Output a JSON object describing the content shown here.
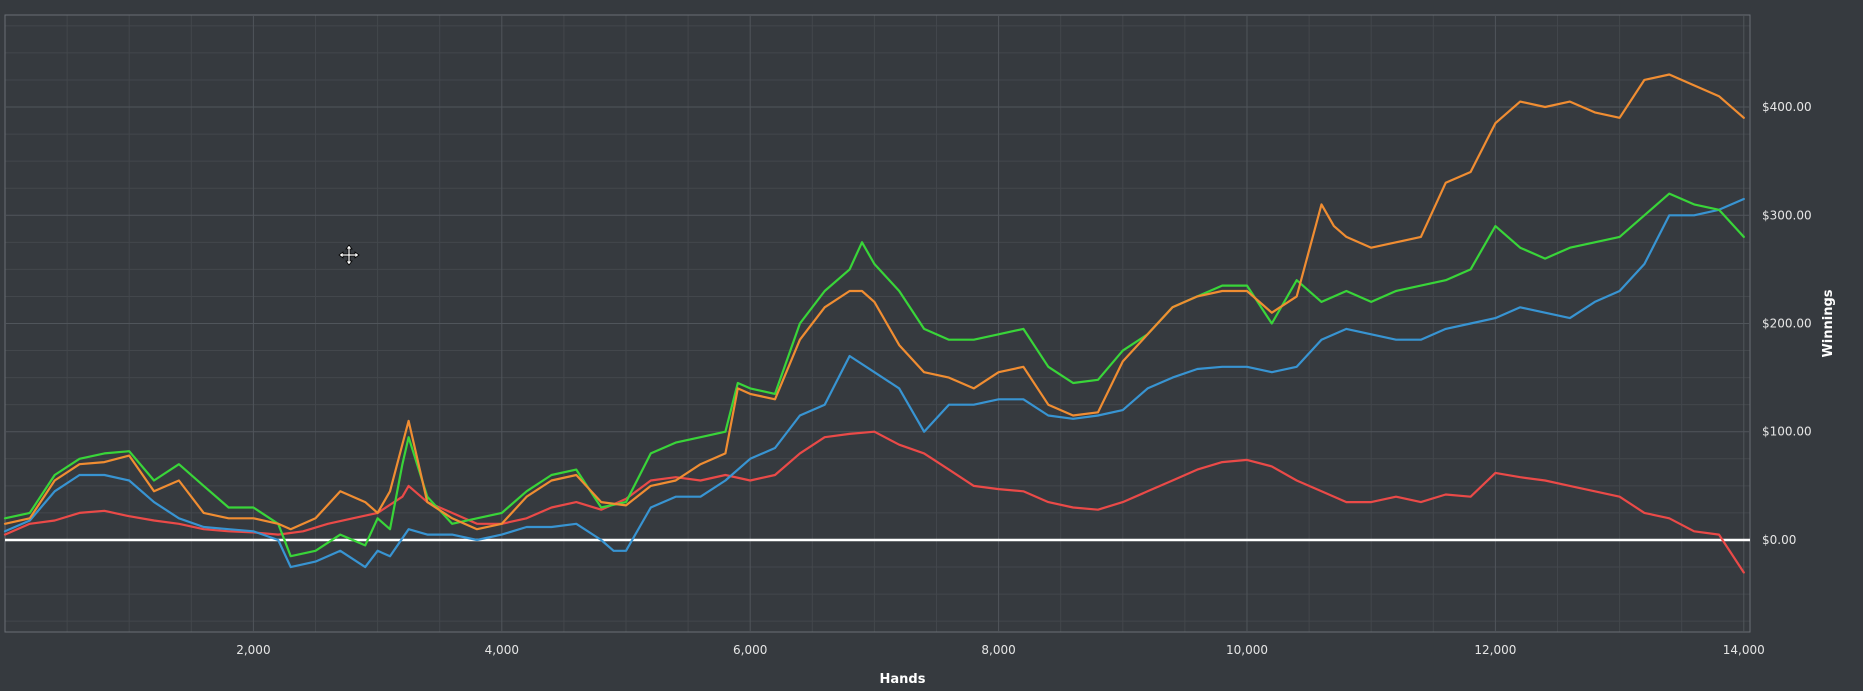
{
  "chart_data": {
    "type": "line",
    "title": "",
    "xlabel": "Hands",
    "ylabel": "Winnings",
    "xlim": [
      0,
      14050
    ],
    "ylim": [
      -85,
      485
    ],
    "grid": true,
    "legend": "none",
    "x_ticks": [
      {
        "value": 2000,
        "label": "2,000"
      },
      {
        "value": 4000,
        "label": "4,000"
      },
      {
        "value": 6000,
        "label": "6,000"
      },
      {
        "value": 8000,
        "label": "8,000"
      },
      {
        "value": 10000,
        "label": "10,000"
      },
      {
        "value": 12000,
        "label": "12,000"
      },
      {
        "value": 14000,
        "label": "14,000"
      }
    ],
    "y_ticks": [
      {
        "value": 0,
        "label": "$0.00"
      },
      {
        "value": 100,
        "label": "$100.00"
      },
      {
        "value": 200,
        "label": "$200.00"
      },
      {
        "value": 300,
        "label": "$300.00"
      },
      {
        "value": 400,
        "label": "$400.00"
      }
    ],
    "zero_line": {
      "value": 0,
      "color": "#ffffff"
    },
    "colors": {
      "background": "#363a3f",
      "grid_major": "#50555b",
      "grid_minor": "#43474c",
      "axis": "#6a6f75"
    },
    "series": [
      {
        "color": "#ea4a48",
        "points": [
          [
            0,
            5
          ],
          [
            200,
            15
          ],
          [
            400,
            18
          ],
          [
            600,
            25
          ],
          [
            800,
            27
          ],
          [
            1000,
            22
          ],
          [
            1200,
            18
          ],
          [
            1400,
            15
          ],
          [
            1600,
            10
          ],
          [
            1800,
            8
          ],
          [
            2000,
            7
          ],
          [
            2200,
            5
          ],
          [
            2400,
            8
          ],
          [
            2600,
            15
          ],
          [
            2800,
            20
          ],
          [
            3000,
            25
          ],
          [
            3200,
            40
          ],
          [
            3250,
            50
          ],
          [
            3400,
            35
          ],
          [
            3600,
            25
          ],
          [
            3800,
            15
          ],
          [
            4000,
            15
          ],
          [
            4200,
            20
          ],
          [
            4400,
            30
          ],
          [
            4600,
            35
          ],
          [
            4800,
            28
          ],
          [
            5000,
            38
          ],
          [
            5200,
            55
          ],
          [
            5400,
            58
          ],
          [
            5600,
            55
          ],
          [
            5800,
            60
          ],
          [
            6000,
            55
          ],
          [
            6200,
            60
          ],
          [
            6400,
            80
          ],
          [
            6600,
            95
          ],
          [
            6800,
            98
          ],
          [
            7000,
            100
          ],
          [
            7200,
            88
          ],
          [
            7400,
            80
          ],
          [
            7600,
            65
          ],
          [
            7800,
            50
          ],
          [
            8000,
            47
          ],
          [
            8200,
            45
          ],
          [
            8400,
            35
          ],
          [
            8600,
            30
          ],
          [
            8800,
            28
          ],
          [
            9000,
            35
          ],
          [
            9200,
            45
          ],
          [
            9400,
            55
          ],
          [
            9600,
            65
          ],
          [
            9800,
            72
          ],
          [
            10000,
            74
          ],
          [
            10200,
            68
          ],
          [
            10400,
            55
          ],
          [
            10600,
            45
          ],
          [
            10800,
            35
          ],
          [
            11000,
            35
          ],
          [
            11200,
            40
          ],
          [
            11400,
            35
          ],
          [
            11600,
            42
          ],
          [
            11800,
            40
          ],
          [
            12000,
            62
          ],
          [
            12200,
            58
          ],
          [
            12400,
            55
          ],
          [
            12600,
            50
          ],
          [
            12800,
            45
          ],
          [
            13000,
            40
          ],
          [
            13200,
            25
          ],
          [
            13400,
            20
          ],
          [
            13600,
            8
          ],
          [
            13800,
            5
          ],
          [
            14000,
            -30
          ]
        ]
      },
      {
        "color": "#3894d2",
        "points": [
          [
            0,
            8
          ],
          [
            200,
            18
          ],
          [
            400,
            45
          ],
          [
            600,
            60
          ],
          [
            800,
            60
          ],
          [
            1000,
            55
          ],
          [
            1200,
            35
          ],
          [
            1400,
            20
          ],
          [
            1600,
            12
          ],
          [
            1800,
            10
          ],
          [
            2000,
            8
          ],
          [
            2200,
            0
          ],
          [
            2300,
            -25
          ],
          [
            2500,
            -20
          ],
          [
            2700,
            -10
          ],
          [
            2900,
            -25
          ],
          [
            3000,
            -10
          ],
          [
            3100,
            -15
          ],
          [
            3250,
            10
          ],
          [
            3400,
            5
          ],
          [
            3600,
            5
          ],
          [
            3800,
            0
          ],
          [
            4000,
            5
          ],
          [
            4200,
            12
          ],
          [
            4400,
            12
          ],
          [
            4600,
            15
          ],
          [
            4800,
            0
          ],
          [
            4900,
            -10
          ],
          [
            5000,
            -10
          ],
          [
            5200,
            30
          ],
          [
            5400,
            40
          ],
          [
            5600,
            40
          ],
          [
            5800,
            55
          ],
          [
            6000,
            75
          ],
          [
            6200,
            85
          ],
          [
            6400,
            115
          ],
          [
            6600,
            125
          ],
          [
            6800,
            170
          ],
          [
            7000,
            155
          ],
          [
            7200,
            140
          ],
          [
            7400,
            100
          ],
          [
            7600,
            125
          ],
          [
            7800,
            125
          ],
          [
            8000,
            130
          ],
          [
            8200,
            130
          ],
          [
            8400,
            115
          ],
          [
            8600,
            112
          ],
          [
            8800,
            115
          ],
          [
            9000,
            120
          ],
          [
            9200,
            140
          ],
          [
            9400,
            150
          ],
          [
            9600,
            158
          ],
          [
            9800,
            160
          ],
          [
            10000,
            160
          ],
          [
            10200,
            155
          ],
          [
            10400,
            160
          ],
          [
            10600,
            185
          ],
          [
            10800,
            195
          ],
          [
            11000,
            190
          ],
          [
            11200,
            185
          ],
          [
            11400,
            185
          ],
          [
            11600,
            195
          ],
          [
            11800,
            200
          ],
          [
            12000,
            205
          ],
          [
            12200,
            215
          ],
          [
            12400,
            210
          ],
          [
            12600,
            205
          ],
          [
            12800,
            220
          ],
          [
            13000,
            230
          ],
          [
            13200,
            255
          ],
          [
            13400,
            300
          ],
          [
            13600,
            300
          ],
          [
            13800,
            305
          ],
          [
            14000,
            315
          ]
        ]
      },
      {
        "color": "#39d539",
        "points": [
          [
            0,
            20
          ],
          [
            200,
            25
          ],
          [
            400,
            60
          ],
          [
            600,
            75
          ],
          [
            800,
            80
          ],
          [
            1000,
            82
          ],
          [
            1200,
            55
          ],
          [
            1400,
            70
          ],
          [
            1600,
            50
          ],
          [
            1800,
            30
          ],
          [
            2000,
            30
          ],
          [
            2200,
            15
          ],
          [
            2300,
            -15
          ],
          [
            2500,
            -10
          ],
          [
            2700,
            5
          ],
          [
            2900,
            -5
          ],
          [
            3000,
            20
          ],
          [
            3100,
            10
          ],
          [
            3200,
            70
          ],
          [
            3250,
            95
          ],
          [
            3400,
            40
          ],
          [
            3600,
            15
          ],
          [
            3800,
            20
          ],
          [
            4000,
            25
          ],
          [
            4200,
            45
          ],
          [
            4400,
            60
          ],
          [
            4600,
            65
          ],
          [
            4800,
            30
          ],
          [
            5000,
            35
          ],
          [
            5200,
            80
          ],
          [
            5400,
            90
          ],
          [
            5600,
            95
          ],
          [
            5800,
            100
          ],
          [
            5900,
            145
          ],
          [
            6000,
            140
          ],
          [
            6200,
            135
          ],
          [
            6400,
            200
          ],
          [
            6600,
            230
          ],
          [
            6800,
            250
          ],
          [
            6900,
            275
          ],
          [
            7000,
            255
          ],
          [
            7200,
            230
          ],
          [
            7400,
            195
          ],
          [
            7600,
            185
          ],
          [
            7800,
            185
          ],
          [
            8000,
            190
          ],
          [
            8200,
            195
          ],
          [
            8400,
            160
          ],
          [
            8600,
            145
          ],
          [
            8800,
            148
          ],
          [
            9000,
            175
          ],
          [
            9200,
            190
          ],
          [
            9400,
            215
          ],
          [
            9600,
            225
          ],
          [
            9800,
            235
          ],
          [
            10000,
            235
          ],
          [
            10200,
            200
          ],
          [
            10400,
            240
          ],
          [
            10600,
            220
          ],
          [
            10800,
            230
          ],
          [
            11000,
            220
          ],
          [
            11200,
            230
          ],
          [
            11400,
            235
          ],
          [
            11600,
            240
          ],
          [
            11800,
            250
          ],
          [
            12000,
            290
          ],
          [
            12200,
            270
          ],
          [
            12400,
            260
          ],
          [
            12600,
            270
          ],
          [
            12800,
            275
          ],
          [
            13000,
            280
          ],
          [
            13200,
            300
          ],
          [
            13400,
            320
          ],
          [
            13600,
            310
          ],
          [
            13800,
            305
          ],
          [
            14000,
            280
          ]
        ]
      },
      {
        "color": "#f08d32",
        "points": [
          [
            0,
            15
          ],
          [
            200,
            20
          ],
          [
            400,
            55
          ],
          [
            600,
            70
          ],
          [
            800,
            72
          ],
          [
            1000,
            78
          ],
          [
            1200,
            45
          ],
          [
            1400,
            55
          ],
          [
            1600,
            25
          ],
          [
            1800,
            20
          ],
          [
            2000,
            20
          ],
          [
            2200,
            15
          ],
          [
            2300,
            10
          ],
          [
            2500,
            20
          ],
          [
            2700,
            45
          ],
          [
            2900,
            35
          ],
          [
            3000,
            25
          ],
          [
            3100,
            45
          ],
          [
            3250,
            110
          ],
          [
            3400,
            35
          ],
          [
            3600,
            20
          ],
          [
            3800,
            10
          ],
          [
            4000,
            15
          ],
          [
            4200,
            40
          ],
          [
            4400,
            55
          ],
          [
            4600,
            60
          ],
          [
            4800,
            35
          ],
          [
            5000,
            32
          ],
          [
            5200,
            50
          ],
          [
            5400,
            55
          ],
          [
            5600,
            70
          ],
          [
            5800,
            80
          ],
          [
            5900,
            140
          ],
          [
            6000,
            135
          ],
          [
            6200,
            130
          ],
          [
            6400,
            185
          ],
          [
            6600,
            215
          ],
          [
            6800,
            230
          ],
          [
            6900,
            230
          ],
          [
            7000,
            220
          ],
          [
            7200,
            180
          ],
          [
            7400,
            155
          ],
          [
            7600,
            150
          ],
          [
            7800,
            140
          ],
          [
            8000,
            155
          ],
          [
            8200,
            160
          ],
          [
            8400,
            125
          ],
          [
            8600,
            115
          ],
          [
            8800,
            118
          ],
          [
            9000,
            165
          ],
          [
            9200,
            190
          ],
          [
            9400,
            215
          ],
          [
            9600,
            225
          ],
          [
            9800,
            230
          ],
          [
            10000,
            230
          ],
          [
            10200,
            210
          ],
          [
            10400,
            225
          ],
          [
            10600,
            310
          ],
          [
            10700,
            290
          ],
          [
            10800,
            280
          ],
          [
            11000,
            270
          ],
          [
            11200,
            275
          ],
          [
            11400,
            280
          ],
          [
            11600,
            330
          ],
          [
            11800,
            340
          ],
          [
            12000,
            385
          ],
          [
            12200,
            405
          ],
          [
            12400,
            400
          ],
          [
            12600,
            405
          ],
          [
            12800,
            395
          ],
          [
            13000,
            390
          ],
          [
            13200,
            425
          ],
          [
            13400,
            430
          ],
          [
            13600,
            420
          ],
          [
            13800,
            410
          ],
          [
            14000,
            390
          ]
        ]
      }
    ]
  }
}
